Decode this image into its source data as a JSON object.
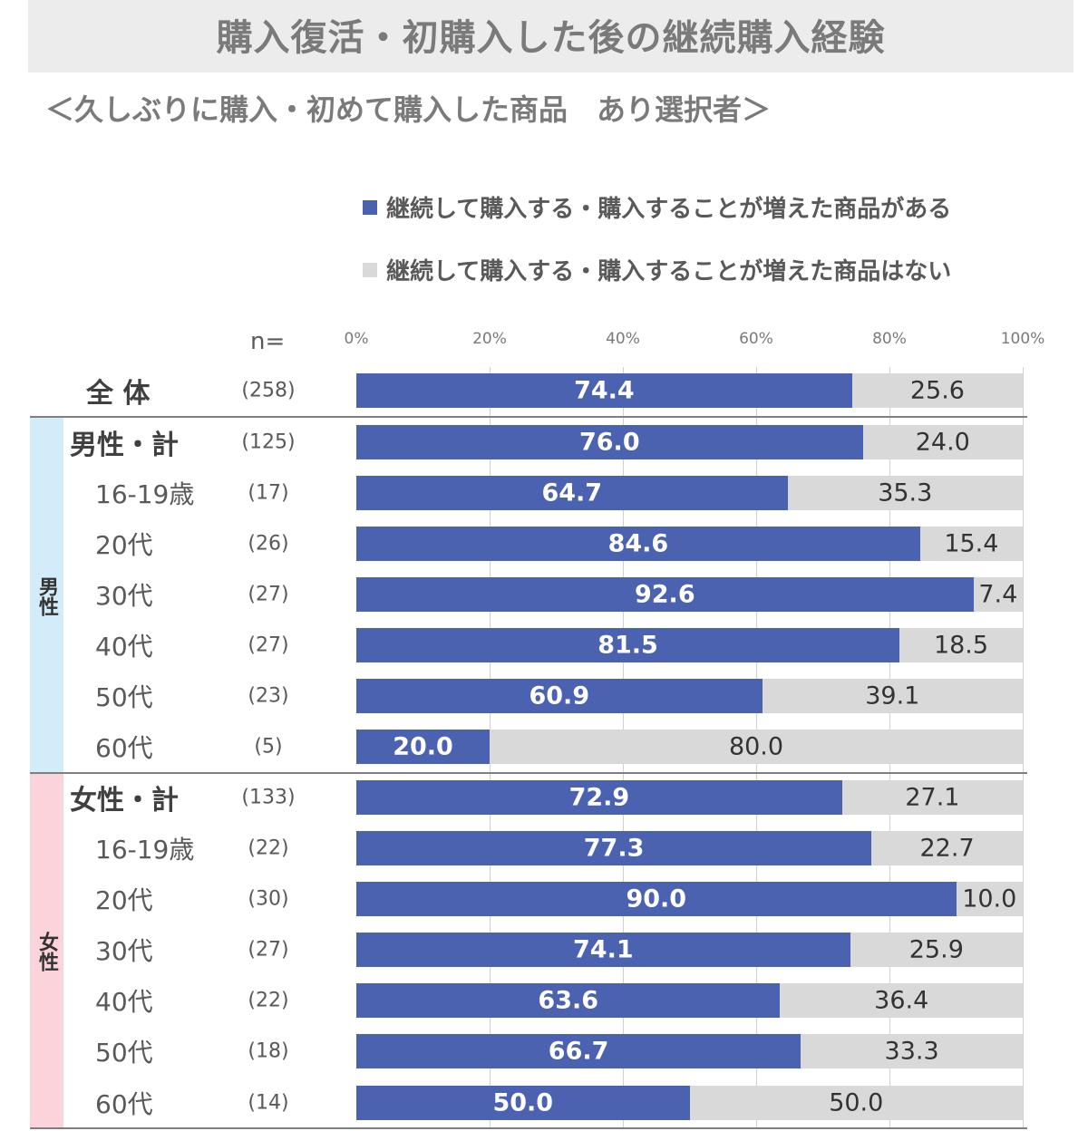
{
  "title": "購入復活・初購入した後の継続購入経験",
  "subtitle": "＜久しぶりに購入・初めて購入した商品　あり選択者＞",
  "n_header": "n=",
  "colors": {
    "yes": "#4a62b0",
    "no": "#d9d9d9",
    "male_band": "#d3ecfa",
    "female_band": "#fbd3da"
  },
  "groups": {
    "male": "男性",
    "female": "女性"
  },
  "chart_data": {
    "type": "bar",
    "orientation": "horizontal",
    "stacked": true,
    "xlim": [
      0,
      100
    ],
    "x_ticks": [
      "0%",
      "20%",
      "40%",
      "60%",
      "80%",
      "100%"
    ],
    "grid": true,
    "legend_position": "top-right",
    "series": [
      {
        "name": "継続して購入する・購入することが増えた商品がある",
        "values": [
          74.4,
          76.0,
          64.7,
          84.6,
          92.6,
          81.5,
          60.9,
          20.0,
          72.9,
          77.3,
          90.0,
          74.1,
          63.6,
          66.7,
          50.0
        ],
        "labels": [
          "74.4",
          "76.0",
          "64.7",
          "84.6",
          "92.6",
          "81.5",
          "60.9",
          "20.0",
          "72.9",
          "77.3",
          "90.0",
          "74.1",
          "63.6",
          "66.7",
          "50.0"
        ]
      },
      {
        "name": "継続して購入する・購入することが増えた商品はない",
        "values": [
          25.6,
          24.0,
          35.3,
          15.4,
          7.4,
          18.5,
          39.1,
          80.0,
          27.1,
          22.7,
          10.0,
          25.9,
          36.4,
          33.3,
          50.0
        ],
        "labels": [
          "25.6",
          "24.0",
          "35.3",
          "15.4",
          "7.4",
          "18.5",
          "39.1",
          "80.0",
          "27.1",
          "22.7",
          "10.0",
          "25.9",
          "36.4",
          "33.3",
          "50.0"
        ]
      }
    ],
    "categories": [
      "全 体",
      "男性・計",
      "16-19歳",
      "20代",
      "30代",
      "40代",
      "50代",
      "60代",
      "女性・計",
      "16-19歳",
      "20代",
      "30代",
      "40代",
      "50代",
      "60代"
    ],
    "n": [
      "(258)",
      "(125)",
      "(17)",
      "(26)",
      "(27)",
      "(27)",
      "(23)",
      "(5)",
      "(133)",
      "(22)",
      "(30)",
      "(27)",
      "(22)",
      "(18)",
      "(14)"
    ]
  }
}
